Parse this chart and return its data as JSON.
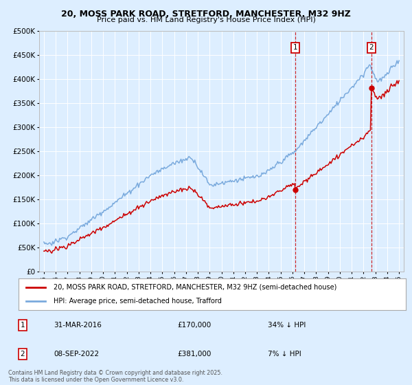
{
  "title": "20, MOSS PARK ROAD, STRETFORD, MANCHESTER, M32 9HZ",
  "subtitle": "Price paid vs. HM Land Registry's House Price Index (HPI)",
  "hpi_label": "HPI: Average price, semi-detached house, Trafford",
  "price_label": "20, MOSS PARK ROAD, STRETFORD, MANCHESTER, M32 9HZ (semi-detached house)",
  "hpi_color": "#7aaadd",
  "price_color": "#cc0000",
  "annotation1_date": "31-MAR-2016",
  "annotation1_year": 2016.25,
  "annotation1_price": 170000,
  "annotation1_text": "34% ↓ HPI",
  "annotation2_date": "08-SEP-2022",
  "annotation2_year": 2022.67,
  "annotation2_price": 381000,
  "annotation2_text": "7% ↓ HPI",
  "footer": "Contains HM Land Registry data © Crown copyright and database right 2025.\nThis data is licensed under the Open Government Licence v3.0.",
  "ylim_min": 0,
  "ylim_max": 500000,
  "background_color": "#ddeeff",
  "grid_color": "#ffffff"
}
